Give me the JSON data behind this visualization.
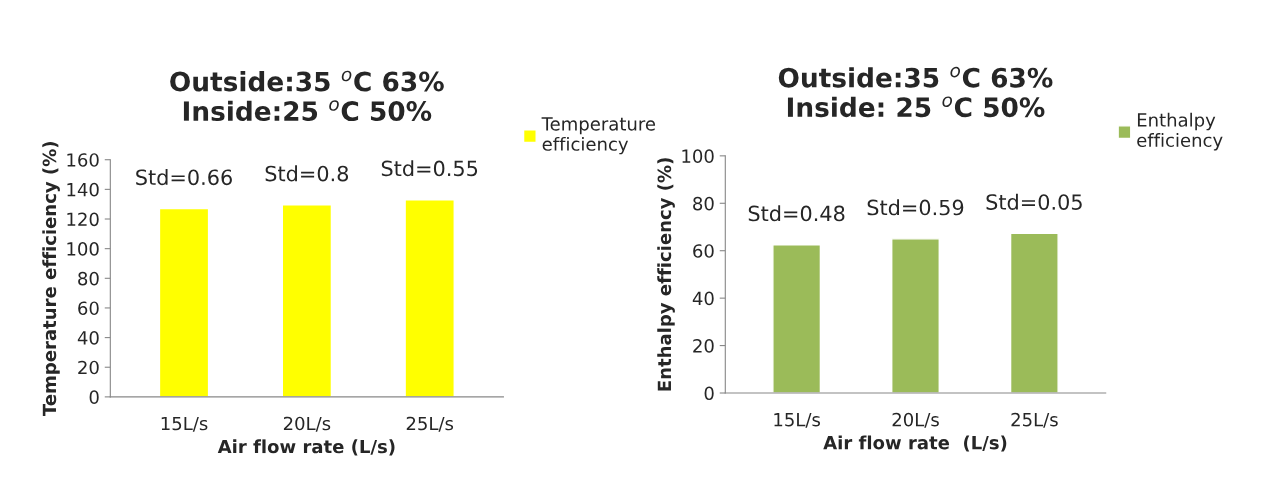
{
  "chart_data": [
    {
      "type": "bar",
      "title": "Outside:35 $^{o}$C 63%\nInside:25 $^{o}$C 50%",
      "xlabel": "Air flow rate (L/s)",
      "ylabel": "Temperature efficiency (%)",
      "categories": [
        "15L/s",
        "20L/s",
        "25L/s"
      ],
      "series": [
        {
          "name": "Temperature\nefficiency",
          "color": "#ffff00",
          "values": [
            127,
            129.5,
            133
          ]
        }
      ],
      "ylim": [
        0,
        160
      ],
      "yticks": [
        0,
        20,
        40,
        60,
        80,
        100,
        120,
        140,
        160
      ],
      "grid": false,
      "legend": "top right",
      "annotations": [
        {
          "text": "Std=0.66",
          "x": "15L/s",
          "y": 127
        },
        {
          "text": "Std=0.8",
          "x": "20L/s",
          "y": 129.5
        },
        {
          "text": "Std=0.55",
          "x": "25L/s",
          "y": 133
        }
      ]
    },
    {
      "type": "bar",
      "title": "Outside:35 $^{o}$C 63%\nInside: 25 $^{o}$C 50%",
      "xlabel": "Air flow rate  (L/s)",
      "ylabel": "Enthalpy efficiency (%)",
      "categories": [
        "15L/s",
        "20L/s",
        "25L/s"
      ],
      "series": [
        {
          "name": "Enthalpy\nefficiency",
          "color": "#9bbb59",
          "values": [
            62.5,
            65,
            67.3
          ]
        }
      ],
      "ylim": [
        0,
        100
      ],
      "yticks": [
        0,
        20,
        40,
        60,
        80,
        100
      ],
      "grid": false,
      "legend": "top right",
      "annotations": [
        {
          "text": "Std=0.48",
          "x": "15L/s",
          "y": 62.5
        },
        {
          "text": "Std=0.59",
          "x": "20L/s",
          "y": 65
        },
        {
          "text": "Std=0.05",
          "x": "25L/s",
          "y": 67.3
        }
      ]
    }
  ]
}
